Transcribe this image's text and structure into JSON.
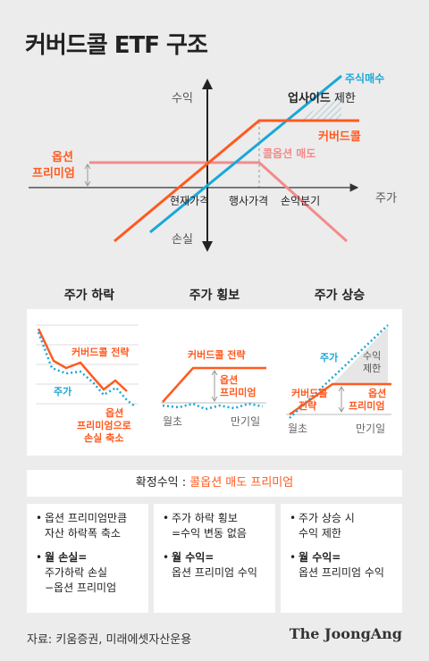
{
  "title": "커버드콜 ETF 구조",
  "main": {
    "y_top": "수익",
    "y_bottom": "손실",
    "x_right": "주가",
    "stock_label": "주식매수",
    "upside_bold": "업사이드",
    "upside_rest": " 제한",
    "covered_call_label": "커버드콜",
    "call_sell_label": "콜옵션 매도",
    "premium_line1": "옵션",
    "premium_line2": "프리미엄",
    "x_current": "현재가격",
    "x_strike": "행사가격",
    "x_breakeven": "손익분기"
  },
  "panels": [
    {
      "title": "주가 하락",
      "cc_label": "커버드콜 전략",
      "stock_label": "주가",
      "note_line1": "옵션",
      "note_line2": "프리미엄으로",
      "note_line3": "손실 축소"
    },
    {
      "title": "주가 횡보",
      "cc_label": "커버드콜 전략",
      "prem_line1": "옵션",
      "prem_line2": "프리미엄",
      "x_start": "월초",
      "x_end": "만기일"
    },
    {
      "title": "주가 상승",
      "stock_label": "주가",
      "limit_line1": "수익",
      "limit_line2": "제한",
      "cc_line1": "커버드콜",
      "cc_line2": "전략",
      "prem_line1": "옵션",
      "prem_line2": "프리미엄",
      "x_start": "월초",
      "x_end": "만기일"
    }
  ],
  "confirmed": {
    "label": "확정수익 : ",
    "value": "콜옵션 매도 프리미엄"
  },
  "boxes": [
    {
      "b1_l1": "옵션 프리미엄만큼",
      "b1_l2": "자산 하락폭 축소",
      "b2_l1": "월 손실=",
      "b2_l2": "주가하락 손실",
      "b2_l3": "−옵션 프리미엄"
    },
    {
      "b1_l1": "주가 하락 횡보",
      "b1_l2": "=수익 변동 없음",
      "b2_l1": "월 수익=",
      "b2_l2": "옵션 프리미엄 수익"
    },
    {
      "b1_l1": "주가 상승 시",
      "b1_l2": "수익 제한",
      "b2_l1": "월 수익=",
      "b2_l2": "옵션 프리미엄 수익"
    }
  ],
  "source": "자료: 키움증권, 미래에셋자산운용",
  "brand": "The JoongAng",
  "colors": {
    "orange": "#ff5a1f",
    "blue": "#1aa7d9",
    "pink": "#f28b8b",
    "background": "#ececec"
  }
}
